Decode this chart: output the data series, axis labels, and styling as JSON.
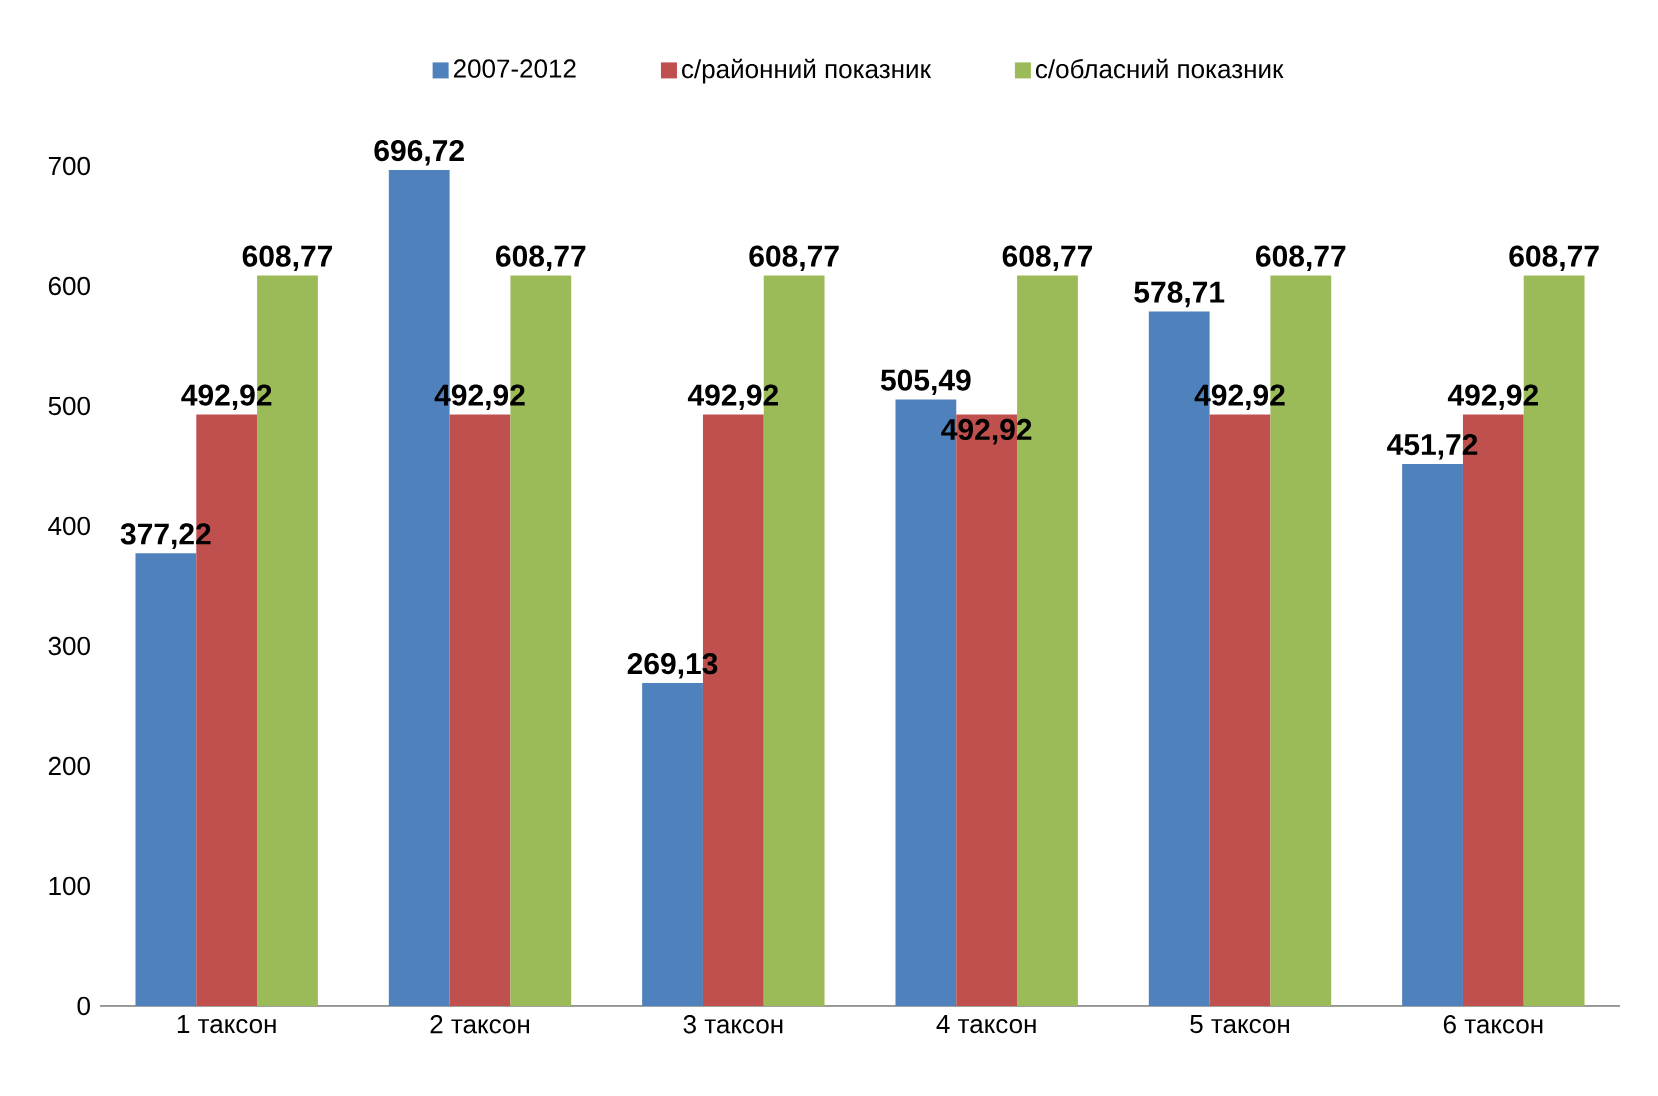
{
  "chart_data": {
    "type": "bar",
    "categories": [
      "1 таксон",
      "2 таксон",
      "3 таксон",
      "4 таксон",
      "5 таксон",
      "6 таксон"
    ],
    "series": [
      {
        "name": "2007-2012",
        "color": "#4f81bd",
        "values": [
          377.22,
          696.72,
          269.13,
          505.49,
          578.71,
          451.72
        ],
        "value_labels": [
          "377,22",
          "696,72",
          "269,13",
          "505,49",
          "578,71",
          "451,72"
        ]
      },
      {
        "name": "с/районний показник",
        "color": "#c0504d",
        "values": [
          492.92,
          492.92,
          492.92,
          492.92,
          492.92,
          492.92
        ],
        "value_labels": [
          "492,92",
          "492,92",
          "492,92",
          "492,92",
          "492,92",
          "492,92"
        ]
      },
      {
        "name": "с/обласний показник",
        "color": "#9bbb59",
        "values": [
          608.77,
          608.77,
          608.77,
          608.77,
          608.77,
          608.77
        ],
        "value_labels": [
          "608,77",
          "608,77",
          "608,77",
          "608,77",
          "608,77",
          "608,77"
        ]
      }
    ],
    "ylim": [
      0,
      700
    ],
    "yticks": [
      0,
      100,
      200,
      300,
      400,
      500,
      600,
      700
    ],
    "grid": false,
    "legend": "top"
  }
}
